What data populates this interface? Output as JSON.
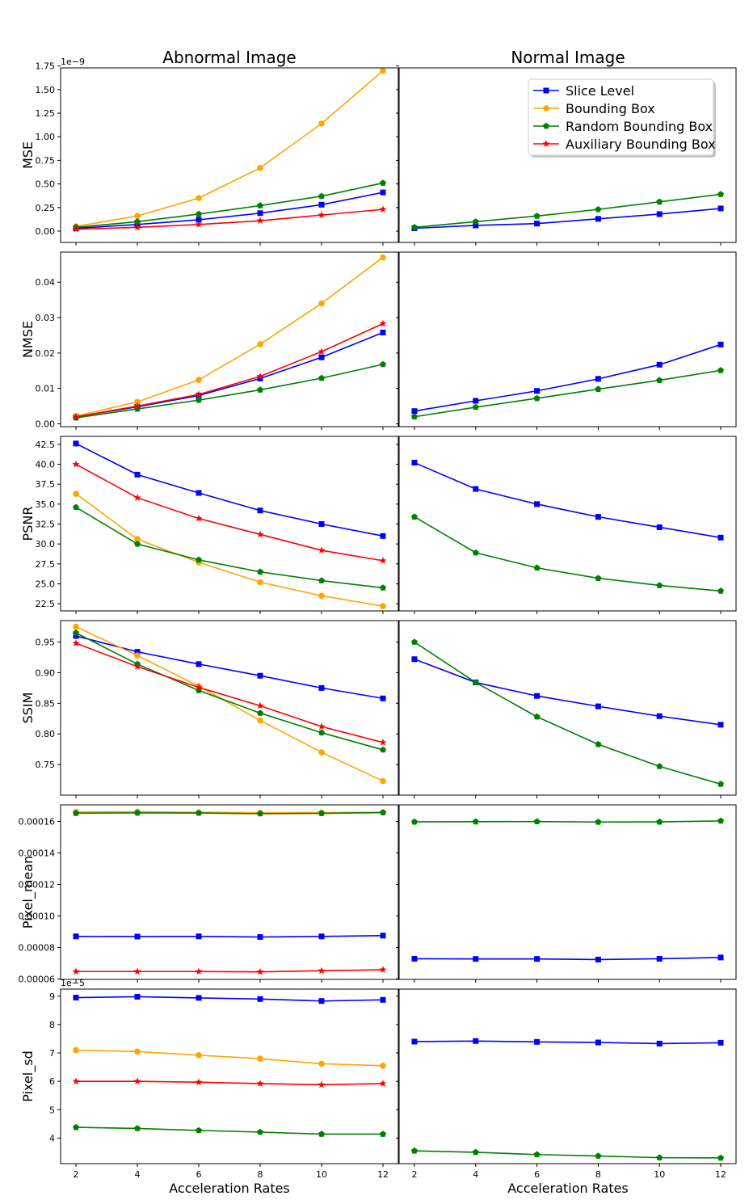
{
  "columns": [
    "Abnormal Image",
    "Normal Image"
  ],
  "xlabel": "Acceleration Rates",
  "legend": {
    "placement": "top-right of Normal Image MSE panel",
    "entries": [
      {
        "name": "Slice Level",
        "color": "#0000ff",
        "marker": "square"
      },
      {
        "name": "Bounding Box",
        "color": "#ffa500",
        "marker": "circle"
      },
      {
        "name": "Random Bounding Box",
        "color": "#008000",
        "marker": "pentagon"
      },
      {
        "name": "Auxiliary Bounding Box",
        "color": "#ff0000",
        "marker": "star"
      }
    ]
  },
  "chart_data": {
    "type": "line",
    "x": [
      2,
      4,
      6,
      8,
      10,
      12
    ],
    "xticks": [
      "2",
      "4",
      "6",
      "8",
      "10",
      "12"
    ],
    "rows": [
      {
        "ylabel": "MSE",
        "exponent": "1e−9",
        "ylim": [
          -1.2e-10,
          1.73e-09
        ],
        "yticks": [
          0,
          2.5e-10,
          5e-10,
          7.5e-10,
          1e-09,
          1.25e-09,
          1.5e-09,
          1.75e-09
        ],
        "yticklabels": [
          "0.00",
          "0.25",
          "0.50",
          "0.75",
          "1.00",
          "1.25",
          "1.50",
          "1.75"
        ],
        "abnormal": [
          {
            "name": "Slice Level",
            "values": [
              3e-11,
              7e-11,
              1.2e-10,
              1.9e-10,
              2.8e-10,
              4.1e-10
            ]
          },
          {
            "name": "Bounding Box",
            "values": [
              5e-11,
              1.6e-10,
              3.5e-10,
              6.7e-10,
              1.14e-09,
              1.7e-09
            ]
          },
          {
            "name": "Random Bounding Box",
            "values": [
              4e-11,
              1e-10,
              1.8e-10,
              2.7e-10,
              3.7e-10,
              5.1e-10
            ]
          },
          {
            "name": "Auxiliary Bounding Box",
            "values": [
              2e-11,
              4e-11,
              7e-11,
              1.1e-10,
              1.7e-10,
              2.3e-10
            ]
          }
        ],
        "normal": [
          {
            "name": "Slice Level",
            "values": [
              3e-11,
              6e-11,
              8e-11,
              1.3e-10,
              1.8e-10,
              2.4e-10
            ]
          },
          {
            "name": "Random Bounding Box",
            "values": [
              4e-11,
              1e-10,
              1.6e-10,
              2.3e-10,
              3.1e-10,
              3.9e-10
            ]
          }
        ]
      },
      {
        "ylabel": "NMSE",
        "exponent": "",
        "ylim": [
          -0.0008,
          0.0485
        ],
        "yticks": [
          0,
          0.01,
          0.02,
          0.03,
          0.04
        ],
        "yticklabels": [
          "0.00",
          "0.01",
          "0.02",
          "0.03",
          "0.04"
        ],
        "abnormal": [
          {
            "name": "Slice Level",
            "values": [
              0.002,
              0.0048,
              0.008,
              0.0128,
              0.0188,
              0.0258
            ]
          },
          {
            "name": "Bounding Box",
            "values": [
              0.0022,
              0.0062,
              0.0124,
              0.0225,
              0.034,
              0.047
            ]
          },
          {
            "name": "Random Bounding Box",
            "values": [
              0.0017,
              0.0042,
              0.0067,
              0.0096,
              0.0129,
              0.0168
            ]
          },
          {
            "name": "Auxiliary Bounding Box",
            "values": [
              0.002,
              0.005,
              0.0083,
              0.0134,
              0.0204,
              0.0283
            ]
          }
        ],
        "normal": [
          {
            "name": "Slice Level",
            "values": [
              0.0036,
              0.0065,
              0.0093,
              0.0127,
              0.0167,
              0.0224
            ]
          },
          {
            "name": "Random Bounding Box",
            "values": [
              0.002,
              0.0047,
              0.0072,
              0.0098,
              0.0123,
              0.0151
            ]
          }
        ]
      },
      {
        "ylabel": "PSNR",
        "exponent": "",
        "ylim": [
          21.6,
          43.5
        ],
        "yticks": [
          22.5,
          25.0,
          27.5,
          30.0,
          32.5,
          35.0,
          37.5,
          40.0,
          42.5
        ],
        "yticklabels": [
          "22.5",
          "25.0",
          "27.5",
          "30.0",
          "32.5",
          "35.0",
          "37.5",
          "40.0",
          "42.5"
        ],
        "abnormal": [
          {
            "name": "Slice Level",
            "values": [
              42.6,
              38.7,
              36.4,
              34.2,
              32.5,
              31.0
            ]
          },
          {
            "name": "Bounding Box",
            "values": [
              36.3,
              30.6,
              27.7,
              25.2,
              23.5,
              22.2
            ]
          },
          {
            "name": "Random Bounding Box",
            "values": [
              34.6,
              30.0,
              28.0,
              26.5,
              25.4,
              24.5
            ]
          },
          {
            "name": "Auxiliary Bounding Box",
            "values": [
              40.0,
              35.8,
              33.2,
              31.2,
              29.2,
              27.9
            ]
          }
        ],
        "normal": [
          {
            "name": "Slice Level",
            "values": [
              40.2,
              36.9,
              35.0,
              33.4,
              32.1,
              30.8
            ]
          },
          {
            "name": "Random Bounding Box",
            "values": [
              33.4,
              28.9,
              27.0,
              25.7,
              24.8,
              24.1
            ]
          }
        ]
      },
      {
        "ylabel": "SSIM",
        "exponent": "",
        "ylim": [
          0.7,
          0.985
        ],
        "yticks": [
          0.75,
          0.8,
          0.85,
          0.9,
          0.95
        ],
        "yticklabels": [
          "0.75",
          "0.80",
          "0.85",
          "0.90",
          "0.95"
        ],
        "abnormal": [
          {
            "name": "Slice Level",
            "values": [
              0.96,
              0.934,
              0.914,
              0.895,
              0.875,
              0.858
            ]
          },
          {
            "name": "Bounding Box",
            "values": [
              0.975,
              0.928,
              0.878,
              0.822,
              0.77,
              0.723
            ]
          },
          {
            "name": "Random Bounding Box",
            "values": [
              0.965,
              0.914,
              0.871,
              0.834,
              0.802,
              0.774
            ]
          },
          {
            "name": "Auxiliary Bounding Box",
            "values": [
              0.948,
              0.91,
              0.876,
              0.846,
              0.812,
              0.786
            ]
          }
        ],
        "normal": [
          {
            "name": "Slice Level",
            "values": [
              0.922,
              0.884,
              0.862,
              0.845,
              0.829,
              0.815
            ]
          },
          {
            "name": "Random Bounding Box",
            "values": [
              0.95,
              0.884,
              0.828,
              0.783,
              0.747,
              0.718
            ]
          }
        ]
      },
      {
        "ylabel": "Pixel_mean",
        "exponent": "",
        "ylim": [
          5.97e-05,
          0.0001705
        ],
        "yticks": [
          6e-05,
          8e-05,
          0.0001,
          0.00012,
          0.00014,
          0.00016
        ],
        "yticklabels": [
          "0.00006",
          "0.00008",
          "0.00010",
          "0.00012",
          "0.00014",
          "0.00016"
        ],
        "abnormal": [
          {
            "name": "Slice Level",
            "values": [
              8.7e-05,
              8.69e-05,
              8.7e-05,
              8.66e-05,
              8.7e-05,
              8.75e-05
            ]
          },
          {
            "name": "Bounding Box",
            "values": [
              0.000166,
              0.0001661,
              0.0001658,
              0.0001655,
              0.0001656,
              0.0001658
            ]
          },
          {
            "name": "Random Bounding Box",
            "values": [
              0.0001652,
              0.0001654,
              0.0001653,
              0.0001649,
              0.0001651,
              0.0001656
            ]
          },
          {
            "name": "Auxiliary Bounding Box",
            "values": [
              6.47e-05,
              6.47e-05,
              6.47e-05,
              6.45e-05,
              6.52e-05,
              6.58e-05
            ]
          }
        ],
        "normal": [
          {
            "name": "Slice Level",
            "values": [
              7.28e-05,
              7.27e-05,
              7.27e-05,
              7.23e-05,
              7.28e-05,
              7.36e-05
            ]
          },
          {
            "name": "Random Bounding Box",
            "values": [
              0.0001597,
              0.0001598,
              0.0001599,
              0.0001596,
              0.0001597,
              0.0001603
            ]
          }
        ]
      },
      {
        "ylabel": "Pixel_sd",
        "exponent": "1e−5",
        "ylim": [
          3.1e-05,
          9.25e-05
        ],
        "yticks": [
          4e-05,
          5e-05,
          6e-05,
          7e-05,
          8e-05,
          9e-05
        ],
        "yticklabels": [
          "4",
          "5",
          "6",
          "7",
          "8",
          "9"
        ],
        "abnormal": [
          {
            "name": "Slice Level",
            "values": [
              8.95e-05,
              8.98e-05,
              8.94e-05,
              8.9e-05,
              8.83e-05,
              8.87e-05
            ]
          },
          {
            "name": "Bounding Box",
            "values": [
              7.1e-05,
              7.05e-05,
              6.92e-05,
              6.8e-05,
              6.62e-05,
              6.55e-05
            ]
          },
          {
            "name": "Random Bounding Box",
            "values": [
              4.38e-05,
              4.34e-05,
              4.27e-05,
              4.21e-05,
              4.14e-05,
              4.14e-05
            ]
          },
          {
            "name": "Auxiliary Bounding Box",
            "values": [
              6e-05,
              6e-05,
              5.97e-05,
              5.92e-05,
              5.88e-05,
              5.92e-05
            ]
          }
        ],
        "normal": [
          {
            "name": "Slice Level",
            "values": [
              7.4e-05,
              7.42e-05,
              7.39e-05,
              7.37e-05,
              7.33e-05,
              7.36e-05
            ]
          },
          {
            "name": "Random Bounding Box",
            "values": [
              3.55e-05,
              3.5e-05,
              3.42e-05,
              3.37e-05,
              3.31e-05,
              3.3e-05
            ]
          }
        ]
      }
    ]
  }
}
